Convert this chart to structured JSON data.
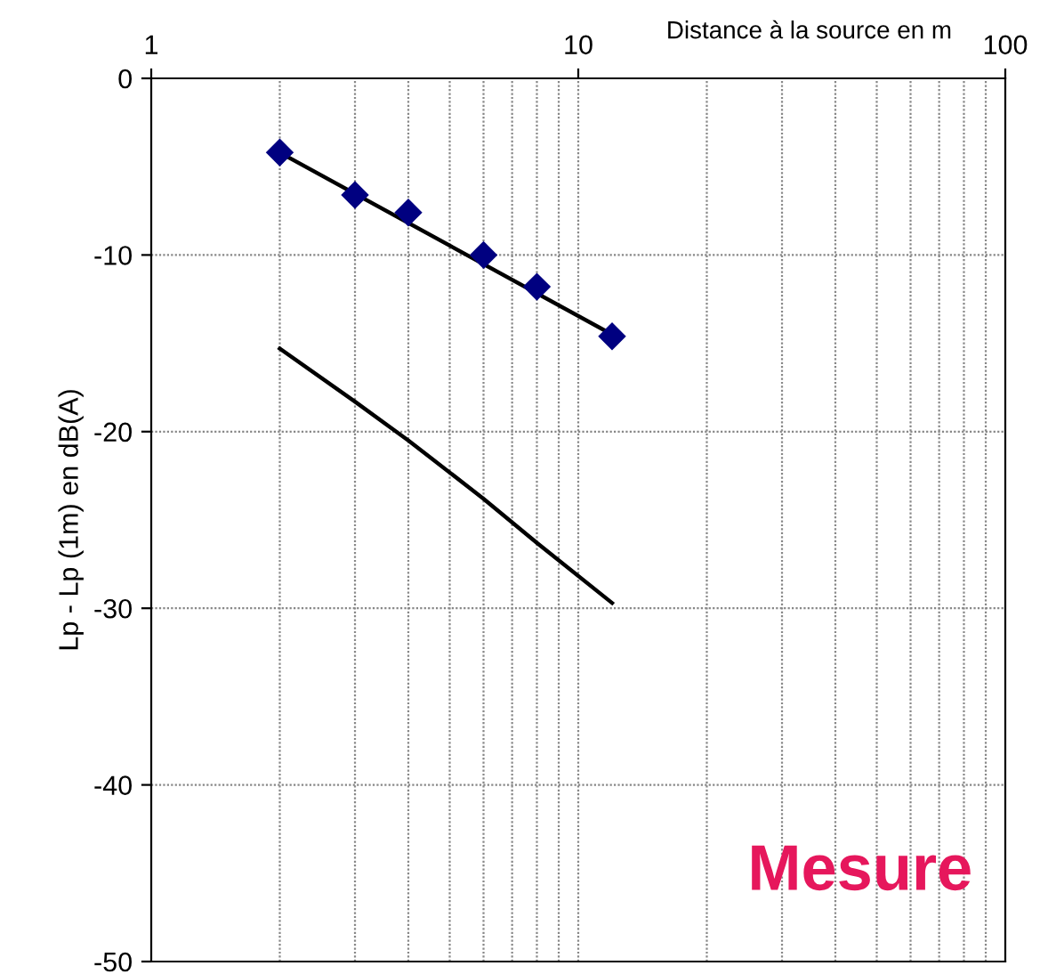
{
  "chart_data": {
    "type": "line",
    "xlabel": "Distance à la source en m",
    "ylabel": "Lp - Lp (1m) en dB(A)",
    "log": "x",
    "xlim": [
      1,
      100
    ],
    "xticks": [
      1,
      10,
      100
    ],
    "ylim": [
      -50,
      0
    ],
    "yticks": [
      0,
      -10,
      -20,
      -30,
      -40,
      -50
    ],
    "grid": true,
    "legend": false,
    "series": [
      {
        "color": "#000000",
        "x": [
          2,
          12
        ],
        "values": [
          -4.2,
          -14.5
        ],
        "marker": "none"
      },
      {
        "type": "scatter",
        "color": "#000080",
        "x": [
          2,
          3,
          4,
          6,
          8,
          12
        ],
        "values": [
          -4.2,
          -6.6,
          -7.6,
          -10.0,
          -11.8,
          -14.6
        ],
        "marker": "diamond"
      },
      {
        "color": "#000000",
        "x": [
          2,
          3,
          4,
          6,
          8,
          12
        ],
        "values": [
          -15.3,
          -18.3,
          -20.5,
          -23.8,
          -26.3,
          -29.7
        ],
        "marker": "none"
      }
    ],
    "annotations": [
      "Mesure"
    ]
  }
}
